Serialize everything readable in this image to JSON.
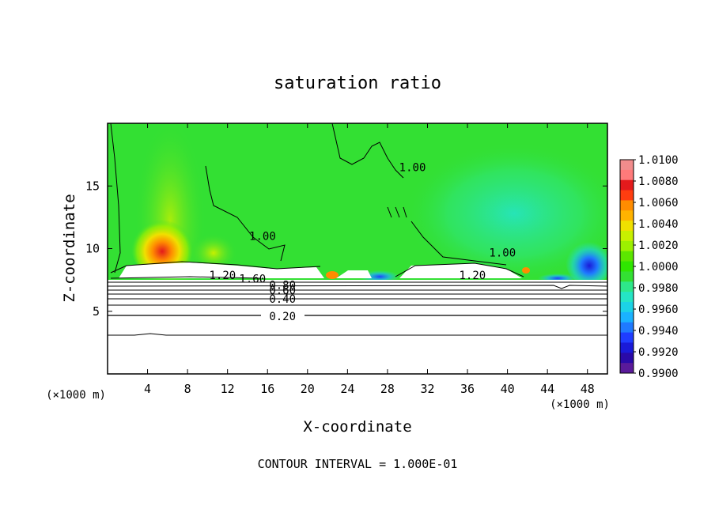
{
  "chart_data": {
    "type": "heatmap",
    "title": "saturation ratio",
    "xlabel": "X-coordinate",
    "ylabel": "Z-coordinate",
    "x_unit_left": "(×1000 m)",
    "x_unit_right": "(×1000 m)",
    "xlim": [
      0,
      50
    ],
    "ylim": [
      0,
      20
    ],
    "x_ticks": [
      4,
      8,
      12,
      16,
      20,
      24,
      28,
      32,
      36,
      40,
      44,
      48
    ],
    "y_ticks": [
      5,
      10,
      15
    ],
    "colorbar": {
      "ticks": [
        "1.0100",
        "1.0080",
        "1.0060",
        "1.0040",
        "1.0020",
        "1.0000",
        "0.9980",
        "0.9960",
        "0.9940",
        "0.9920",
        "0.9900"
      ],
      "colors": [
        "#f28c8c",
        "#ff7a7a",
        "#e31a1c",
        "#ff3d10",
        "#ff8c00",
        "#ffb300",
        "#f0e000",
        "#c8f000",
        "#9cf000",
        "#5ce600",
        "#2fe600",
        "#33e033",
        "#2ee88a",
        "#25e5c5",
        "#1cd2e6",
        "#1ab2ff",
        "#1f7aff",
        "#1f3dff",
        "#1a1ad8",
        "#2a0aa8",
        "#5a1a9a"
      ],
      "min": 0.99,
      "max": 1.01
    },
    "contour_labels": [
      {
        "text": "1.00",
        "x": 30.5,
        "y": 16.5
      },
      {
        "text": "1.00",
        "x": 15.5,
        "y": 11.0
      },
      {
        "text": "1.00",
        "x": 39.5,
        "y": 9.7
      },
      {
        "text": "1.20",
        "x": 11.5,
        "y": 7.9
      },
      {
        "text": "1.60",
        "x": 14.5,
        "y": 7.6
      },
      {
        "text": "1.20",
        "x": 36.5,
        "y": 7.9
      },
      {
        "text": "0.80",
        "x": 17.5,
        "y": 7.1
      },
      {
        "text": "0.60",
        "x": 17.5,
        "y": 6.7
      },
      {
        "text": "0.40",
        "x": 17.5,
        "y": 6.0
      },
      {
        "text": "0.20",
        "x": 17.5,
        "y": 4.6
      }
    ],
    "footer": "CONTOUR INTERVAL = 1.000E-01",
    "grid": false,
    "legend": "colorbar-right"
  }
}
